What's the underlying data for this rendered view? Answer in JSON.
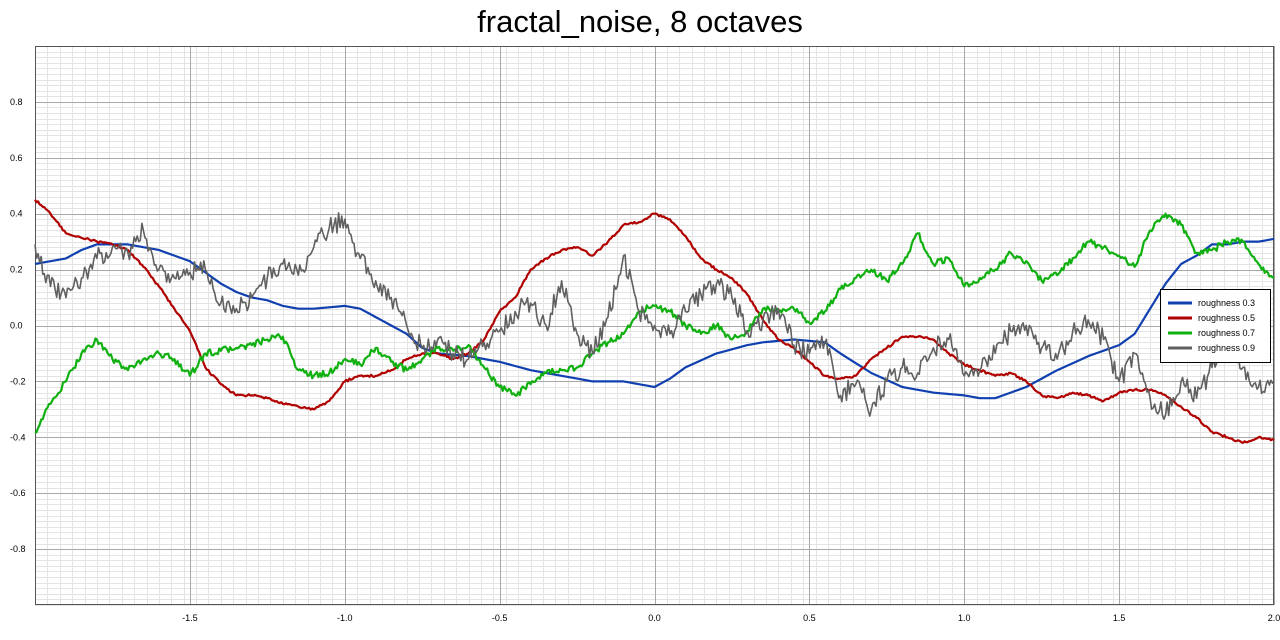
{
  "chart_data": {
    "type": "line",
    "title": "fractal_noise, 8 octaves",
    "xlabel": "",
    "ylabel": "",
    "xlim": [
      -2.0,
      2.0
    ],
    "ylim": [
      -1.0,
      1.0
    ],
    "x_ticks": [
      -1.5,
      -1.0,
      -0.5,
      0.0,
      0.5,
      1.0,
      1.5,
      2.0
    ],
    "x_tick_labels": [
      "-1.5",
      "-1.0",
      "-0.5",
      "0.0",
      "0.5",
      "1.0",
      "1.5",
      "2.0"
    ],
    "y_ticks": [
      -0.8,
      -0.6,
      -0.4,
      -0.2,
      0.0,
      0.2,
      0.4,
      0.6,
      0.8
    ],
    "y_tick_labels": [
      "-0.8",
      "-0.6",
      "-0.4",
      "-0.2",
      "0.0",
      "0.2",
      "0.4",
      "0.6",
      "0.8"
    ],
    "grid": true,
    "legend_position": "right",
    "series": [
      {
        "name": "roughness 0.3",
        "color": "#1040b0",
        "points": [
          [
            -2.0,
            0.22
          ],
          [
            -1.9,
            0.24
          ],
          [
            -1.85,
            0.27
          ],
          [
            -1.8,
            0.29
          ],
          [
            -1.75,
            0.29
          ],
          [
            -1.7,
            0.29
          ],
          [
            -1.6,
            0.27
          ],
          [
            -1.5,
            0.23
          ],
          [
            -1.45,
            0.19
          ],
          [
            -1.4,
            0.15
          ],
          [
            -1.35,
            0.12
          ],
          [
            -1.3,
            0.1
          ],
          [
            -1.25,
            0.09
          ],
          [
            -1.2,
            0.07
          ],
          [
            -1.15,
            0.06
          ],
          [
            -1.1,
            0.06
          ],
          [
            -1.0,
            0.07
          ],
          [
            -0.95,
            0.06
          ],
          [
            -0.9,
            0.03
          ],
          [
            -0.85,
            0.0
          ],
          [
            -0.8,
            -0.03
          ],
          [
            -0.75,
            -0.08
          ],
          [
            -0.7,
            -0.1
          ],
          [
            -0.6,
            -0.11
          ],
          [
            -0.5,
            -0.13
          ],
          [
            -0.4,
            -0.16
          ],
          [
            -0.3,
            -0.18
          ],
          [
            -0.2,
            -0.2
          ],
          [
            -0.1,
            -0.2
          ],
          [
            -0.05,
            -0.21
          ],
          [
            0.0,
            -0.22
          ],
          [
            0.05,
            -0.19
          ],
          [
            0.1,
            -0.15
          ],
          [
            0.2,
            -0.1
          ],
          [
            0.3,
            -0.07
          ],
          [
            0.35,
            -0.06
          ],
          [
            0.45,
            -0.05
          ],
          [
            0.55,
            -0.06
          ],
          [
            0.6,
            -0.1
          ],
          [
            0.7,
            -0.17
          ],
          [
            0.8,
            -0.22
          ],
          [
            0.9,
            -0.24
          ],
          [
            1.0,
            -0.25
          ],
          [
            1.05,
            -0.26
          ],
          [
            1.1,
            -0.26
          ],
          [
            1.2,
            -0.22
          ],
          [
            1.3,
            -0.16
          ],
          [
            1.4,
            -0.11
          ],
          [
            1.5,
            -0.07
          ],
          [
            1.55,
            -0.03
          ],
          [
            1.6,
            0.06
          ],
          [
            1.65,
            0.15
          ],
          [
            1.7,
            0.22
          ],
          [
            1.75,
            0.25
          ],
          [
            1.8,
            0.29
          ],
          [
            1.85,
            0.29
          ],
          [
            1.9,
            0.3
          ],
          [
            1.95,
            0.3
          ],
          [
            2.0,
            0.31
          ]
        ]
      },
      {
        "name": "roughness 0.5",
        "color": "#b00000",
        "points": [
          [
            -2.0,
            0.45
          ],
          [
            -1.95,
            0.4
          ],
          [
            -1.9,
            0.33
          ],
          [
            -1.8,
            0.3
          ],
          [
            -1.75,
            0.29
          ],
          [
            -1.7,
            0.27
          ],
          [
            -1.65,
            0.21
          ],
          [
            -1.6,
            0.14
          ],
          [
            -1.55,
            0.06
          ],
          [
            -1.5,
            -0.02
          ],
          [
            -1.45,
            -0.15
          ],
          [
            -1.4,
            -0.21
          ],
          [
            -1.35,
            -0.25
          ],
          [
            -1.3,
            -0.25
          ],
          [
            -1.25,
            -0.26
          ],
          [
            -1.2,
            -0.28
          ],
          [
            -1.15,
            -0.29
          ],
          [
            -1.1,
            -0.3
          ],
          [
            -1.05,
            -0.27
          ],
          [
            -1.0,
            -0.2
          ],
          [
            -0.95,
            -0.18
          ],
          [
            -0.9,
            -0.18
          ],
          [
            -0.85,
            -0.16
          ],
          [
            -0.8,
            -0.12
          ],
          [
            -0.75,
            -0.1
          ],
          [
            -0.7,
            -0.1
          ],
          [
            -0.65,
            -0.12
          ],
          [
            -0.6,
            -0.1
          ],
          [
            -0.55,
            -0.05
          ],
          [
            -0.5,
            0.05
          ],
          [
            -0.45,
            0.1
          ],
          [
            -0.4,
            0.2
          ],
          [
            -0.35,
            0.24
          ],
          [
            -0.3,
            0.27
          ],
          [
            -0.25,
            0.28
          ],
          [
            -0.2,
            0.25
          ],
          [
            -0.15,
            0.3
          ],
          [
            -0.1,
            0.36
          ],
          [
            -0.05,
            0.37
          ],
          [
            0.0,
            0.4
          ],
          [
            0.05,
            0.38
          ],
          [
            0.1,
            0.32
          ],
          [
            0.15,
            0.24
          ],
          [
            0.2,
            0.2
          ],
          [
            0.25,
            0.17
          ],
          [
            0.3,
            0.11
          ],
          [
            0.35,
            0.02
          ],
          [
            0.4,
            -0.05
          ],
          [
            0.45,
            -0.08
          ],
          [
            0.5,
            -0.13
          ],
          [
            0.55,
            -0.18
          ],
          [
            0.6,
            -0.19
          ],
          [
            0.65,
            -0.18
          ],
          [
            0.7,
            -0.12
          ],
          [
            0.75,
            -0.08
          ],
          [
            0.8,
            -0.04
          ],
          [
            0.85,
            -0.04
          ],
          [
            0.9,
            -0.05
          ],
          [
            0.95,
            -0.1
          ],
          [
            1.0,
            -0.14
          ],
          [
            1.05,
            -0.16
          ],
          [
            1.1,
            -0.18
          ],
          [
            1.15,
            -0.17
          ],
          [
            1.2,
            -0.2
          ],
          [
            1.25,
            -0.25
          ],
          [
            1.3,
            -0.26
          ],
          [
            1.35,
            -0.24
          ],
          [
            1.4,
            -0.25
          ],
          [
            1.45,
            -0.27
          ],
          [
            1.5,
            -0.24
          ],
          [
            1.55,
            -0.23
          ],
          [
            1.6,
            -0.23
          ],
          [
            1.65,
            -0.25
          ],
          [
            1.7,
            -0.29
          ],
          [
            1.75,
            -0.33
          ],
          [
            1.8,
            -0.38
          ],
          [
            1.85,
            -0.4
          ],
          [
            1.9,
            -0.42
          ],
          [
            1.95,
            -0.4
          ],
          [
            2.0,
            -0.41
          ]
        ]
      },
      {
        "name": "roughness 0.7",
        "color": "#10b010",
        "points": [
          [
            -2.0,
            -0.38
          ],
          [
            -1.95,
            -0.28
          ],
          [
            -1.9,
            -0.2
          ],
          [
            -1.85,
            -0.1
          ],
          [
            -1.8,
            -0.05
          ],
          [
            -1.75,
            -0.12
          ],
          [
            -1.7,
            -0.16
          ],
          [
            -1.65,
            -0.12
          ],
          [
            -1.6,
            -0.1
          ],
          [
            -1.55,
            -0.12
          ],
          [
            -1.5,
            -0.18
          ],
          [
            -1.45,
            -0.1
          ],
          [
            -1.4,
            -0.09
          ],
          [
            -1.35,
            -0.08
          ],
          [
            -1.3,
            -0.07
          ],
          [
            -1.25,
            -0.05
          ],
          [
            -1.2,
            -0.04
          ],
          [
            -1.15,
            -0.16
          ],
          [
            -1.1,
            -0.18
          ],
          [
            -1.05,
            -0.17
          ],
          [
            -1.0,
            -0.12
          ],
          [
            -0.95,
            -0.14
          ],
          [
            -0.9,
            -0.08
          ],
          [
            -0.85,
            -0.13
          ],
          [
            -0.8,
            -0.16
          ],
          [
            -0.75,
            -0.12
          ],
          [
            -0.7,
            -0.08
          ],
          [
            -0.65,
            -0.09
          ],
          [
            -0.6,
            -0.07
          ],
          [
            -0.55,
            -0.15
          ],
          [
            -0.5,
            -0.22
          ],
          [
            -0.45,
            -0.25
          ],
          [
            -0.4,
            -0.21
          ],
          [
            -0.35,
            -0.17
          ],
          [
            -0.3,
            -0.16
          ],
          [
            -0.25,
            -0.15
          ],
          [
            -0.2,
            -0.1
          ],
          [
            -0.15,
            -0.06
          ],
          [
            -0.1,
            -0.03
          ],
          [
            -0.05,
            0.05
          ],
          [
            0.0,
            0.07
          ],
          [
            0.05,
            0.05
          ],
          [
            0.1,
            0.0
          ],
          [
            0.15,
            -0.03
          ],
          [
            0.2,
            0.0
          ],
          [
            0.25,
            -0.05
          ],
          [
            0.3,
            -0.02
          ],
          [
            0.35,
            0.06
          ],
          [
            0.4,
            0.05
          ],
          [
            0.45,
            0.06
          ],
          [
            0.5,
            0.01
          ],
          [
            0.55,
            0.05
          ],
          [
            0.6,
            0.13
          ],
          [
            0.65,
            0.17
          ],
          [
            0.7,
            0.2
          ],
          [
            0.75,
            0.16
          ],
          [
            0.8,
            0.22
          ],
          [
            0.85,
            0.33
          ],
          [
            0.9,
            0.22
          ],
          [
            0.95,
            0.24
          ],
          [
            1.0,
            0.14
          ],
          [
            1.05,
            0.17
          ],
          [
            1.1,
            0.2
          ],
          [
            1.15,
            0.26
          ],
          [
            1.2,
            0.23
          ],
          [
            1.25,
            0.16
          ],
          [
            1.3,
            0.18
          ],
          [
            1.35,
            0.24
          ],
          [
            1.4,
            0.3
          ],
          [
            1.45,
            0.28
          ],
          [
            1.5,
            0.25
          ],
          [
            1.55,
            0.21
          ],
          [
            1.6,
            0.34
          ],
          [
            1.65,
            0.4
          ],
          [
            1.7,
            0.36
          ],
          [
            1.75,
            0.26
          ],
          [
            1.8,
            0.27
          ],
          [
            1.85,
            0.3
          ],
          [
            1.9,
            0.3
          ],
          [
            1.95,
            0.22
          ],
          [
            2.0,
            0.17
          ]
        ]
      },
      {
        "name": "roughness 0.9",
        "color": "#606060",
        "points": [
          [
            -2.0,
            0.29
          ],
          [
            -1.95,
            0.14
          ],
          [
            -1.9,
            0.1
          ],
          [
            -1.85,
            0.17
          ],
          [
            -1.8,
            0.24
          ],
          [
            -1.75,
            0.28
          ],
          [
            -1.7,
            0.26
          ],
          [
            -1.65,
            0.34
          ],
          [
            -1.6,
            0.2
          ],
          [
            -1.55,
            0.17
          ],
          [
            -1.5,
            0.19
          ],
          [
            -1.45,
            0.2
          ],
          [
            -1.4,
            0.08
          ],
          [
            -1.35,
            0.06
          ],
          [
            -1.3,
            0.1
          ],
          [
            -1.25,
            0.17
          ],
          [
            -1.2,
            0.22
          ],
          [
            -1.15,
            0.18
          ],
          [
            -1.1,
            0.28
          ],
          [
            -1.05,
            0.35
          ],
          [
            -1.0,
            0.38
          ],
          [
            -0.95,
            0.24
          ],
          [
            -0.9,
            0.16
          ],
          [
            -0.85,
            0.1
          ],
          [
            -0.8,
            0.0
          ],
          [
            -0.75,
            -0.08
          ],
          [
            -0.7,
            -0.05
          ],
          [
            -0.65,
            -0.1
          ],
          [
            -0.6,
            -0.12
          ],
          [
            -0.55,
            -0.06
          ],
          [
            -0.5,
            -0.02
          ],
          [
            -0.45,
            0.05
          ],
          [
            -0.4,
            0.08
          ],
          [
            -0.35,
            0.0
          ],
          [
            -0.3,
            0.16
          ],
          [
            -0.25,
            -0.03
          ],
          [
            -0.2,
            -0.1
          ],
          [
            -0.15,
            0.03
          ],
          [
            -0.1,
            0.25
          ],
          [
            -0.05,
            0.05
          ],
          [
            0.0,
            0.0
          ],
          [
            0.05,
            -0.03
          ],
          [
            0.1,
            0.05
          ],
          [
            0.15,
            0.11
          ],
          [
            0.2,
            0.15
          ],
          [
            0.25,
            0.1
          ],
          [
            0.3,
            -0.02
          ],
          [
            0.35,
            0.02
          ],
          [
            0.4,
            0.06
          ],
          [
            0.45,
            -0.07
          ],
          [
            0.5,
            -0.1
          ],
          [
            0.55,
            -0.06
          ],
          [
            0.6,
            -0.25
          ],
          [
            0.65,
            -0.21
          ],
          [
            0.7,
            -0.3
          ],
          [
            0.75,
            -0.2
          ],
          [
            0.8,
            -0.15
          ],
          [
            0.85,
            -0.17
          ],
          [
            0.9,
            -0.08
          ],
          [
            0.95,
            -0.05
          ],
          [
            1.0,
            -0.18
          ],
          [
            1.05,
            -0.16
          ],
          [
            1.1,
            -0.1
          ],
          [
            1.15,
            -0.02
          ],
          [
            1.2,
            0.0
          ],
          [
            1.25,
            -0.08
          ],
          [
            1.3,
            -0.12
          ],
          [
            1.35,
            -0.02
          ],
          [
            1.4,
            0.02
          ],
          [
            1.45,
            -0.05
          ],
          [
            1.5,
            -0.2
          ],
          [
            1.55,
            -0.1
          ],
          [
            1.6,
            -0.26
          ],
          [
            1.65,
            -0.32
          ],
          [
            1.7,
            -0.2
          ],
          [
            1.75,
            -0.26
          ],
          [
            1.8,
            -0.15
          ],
          [
            1.85,
            -0.08
          ],
          [
            1.9,
            -0.15
          ],
          [
            1.95,
            -0.22
          ],
          [
            2.0,
            -0.2
          ]
        ]
      }
    ]
  }
}
